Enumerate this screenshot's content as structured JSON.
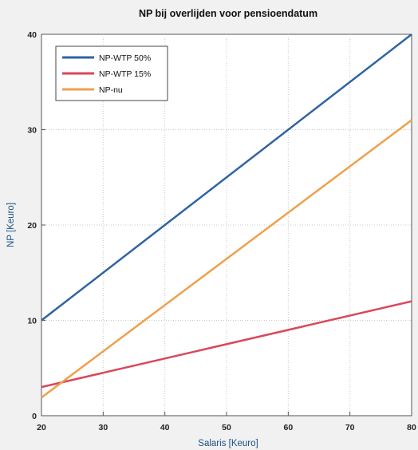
{
  "chart_data": {
    "type": "line",
    "title": "NP bij overlijden voor pensioendatum",
    "xlabel": "Salaris [Keuro]",
    "ylabel": "NP [Keuro]",
    "xlim": [
      20,
      80
    ],
    "ylim": [
      0,
      40
    ],
    "x_ticks": [
      20,
      30,
      40,
      50,
      60,
      70,
      80
    ],
    "y_ticks": [
      0,
      10,
      20,
      30,
      40
    ],
    "grid": true,
    "legend_position": "top-left",
    "series": [
      {
        "name": "NP-WTP 50%",
        "color": "#2f63a4",
        "x": [
          20,
          80
        ],
        "y": [
          10,
          40
        ]
      },
      {
        "name": "NP-WTP 15%",
        "color": "#d9475a",
        "x": [
          20,
          80
        ],
        "y": [
          3,
          12
        ]
      },
      {
        "name": "NP-nu",
        "color": "#f0a04b",
        "x": [
          20,
          80
        ],
        "y": [
          1.9,
          31
        ]
      }
    ]
  }
}
